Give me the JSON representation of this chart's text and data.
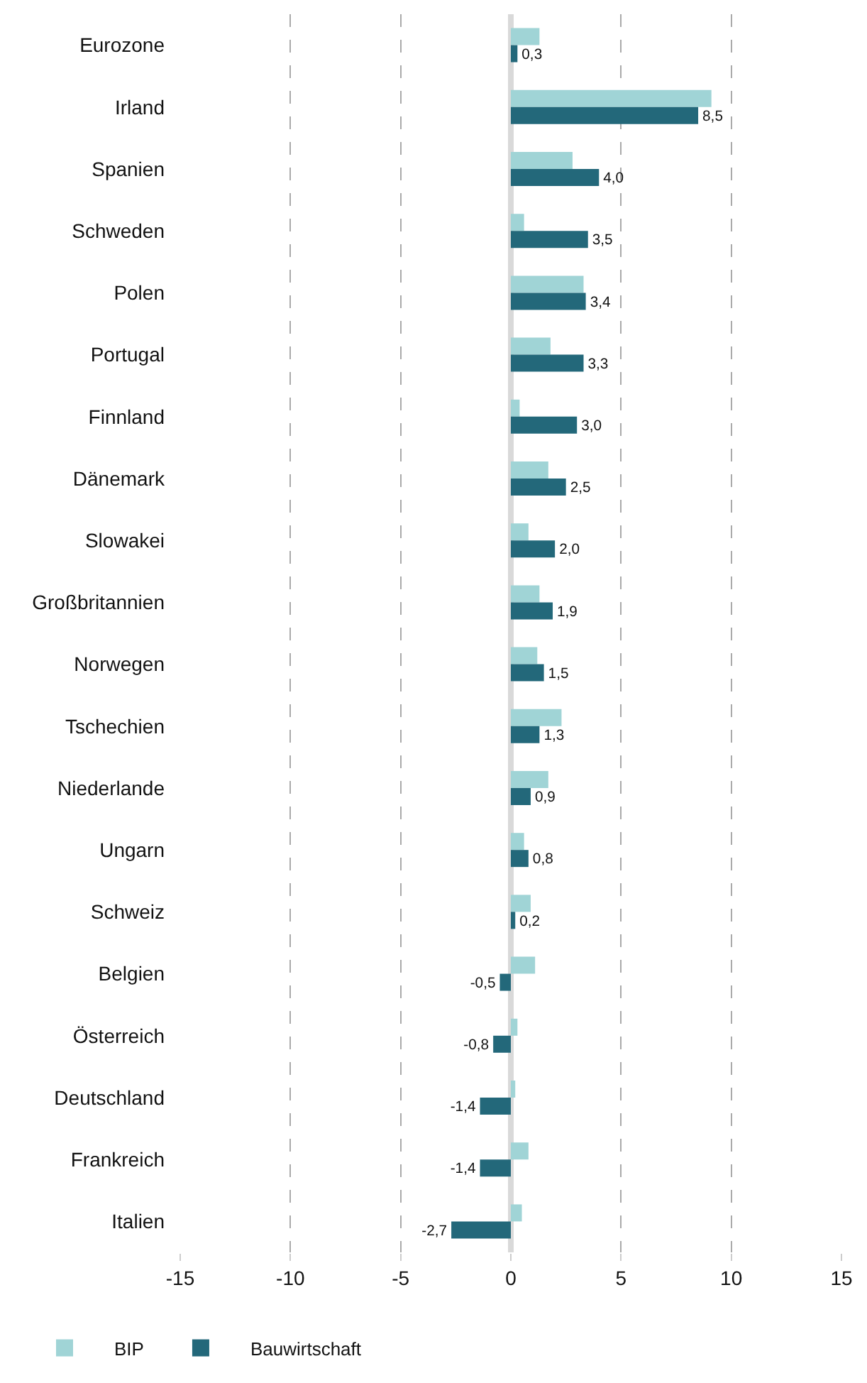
{
  "chart_data": {
    "type": "bar",
    "orientation": "horizontal",
    "categories": [
      "Eurozone",
      "Irland",
      "Spanien",
      "Schweden",
      "Polen",
      "Portugal",
      "Finnland",
      "Dänemark",
      "Slowakei",
      "Großbritannien",
      "Norwegen",
      "Tschechien",
      "Niederlande",
      "Ungarn",
      "Schweiz",
      "Belgien",
      "Österreich",
      "Deutschland",
      "Frankreich",
      "Italien"
    ],
    "series": [
      {
        "name": "BIP",
        "color": "#a0d4d6",
        "values": [
          1.3,
          9.1,
          2.8,
          0.6,
          3.3,
          1.8,
          0.4,
          1.7,
          0.8,
          1.3,
          1.2,
          2.3,
          1.7,
          0.6,
          0.9,
          1.1,
          0.3,
          0.2,
          0.8,
          0.5
        ]
      },
      {
        "name": "Bauwirtschaft",
        "color": "#23687a",
        "values": [
          0.3,
          8.5,
          4.0,
          3.5,
          3.4,
          3.3,
          3.0,
          2.5,
          2.0,
          1.9,
          1.5,
          1.3,
          0.9,
          0.8,
          0.2,
          -0.5,
          -0.8,
          -1.4,
          -1.4,
          -2.7
        ],
        "value_labels": [
          "0,3",
          "8,5",
          "4,0",
          "3,5",
          "3,4",
          "3,3",
          "3,0",
          "2,5",
          "2,0",
          "1,9",
          "1,5",
          "1,3",
          "0,9",
          "0,8",
          "0,2",
          "-0,5",
          "-0,8",
          "-1,4",
          "-1,4",
          "-2,7"
        ]
      }
    ],
    "xlim": [
      -15,
      15
    ],
    "xticks": [
      -15,
      -10,
      -5,
      0,
      5,
      10,
      15
    ],
    "grid": "x",
    "legend": "bottom left"
  }
}
